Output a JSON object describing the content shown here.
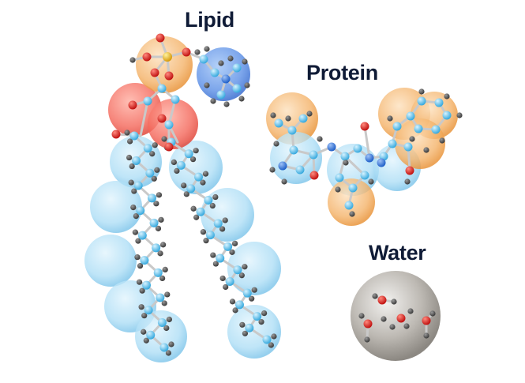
{
  "labels": {
    "lipid": "Lipid",
    "protein": "Protein",
    "water": "Water"
  },
  "colors": {
    "label": "#0f1b36",
    "cg_bead_tail": "#a9dcf5",
    "cg_bead_headgroup_choline": "#3f7fe0",
    "cg_bead_phosphate": "#f2a04a",
    "cg_bead_glycerol": "#f25a4f",
    "cg_bead_protein_backbone": "#a9dcf5",
    "cg_bead_protein_sidechain": "#f2a04a",
    "cg_bead_water": "#9a9690",
    "atom_carbon": "#55bde8",
    "atom_hydrogen": "#555555",
    "atom_oxygen": "#d71f1f",
    "atom_nitrogen": "#2d74d9",
    "atom_phosphorus": "#e0b020"
  },
  "molecules": [
    {
      "name": "lipid",
      "representation": "all-atom with coarse-grained beads"
    },
    {
      "name": "protein",
      "representation": "all-atom with coarse-grained beads"
    },
    {
      "name": "water",
      "representation": "four water molecules in one coarse-grained bead"
    }
  ]
}
